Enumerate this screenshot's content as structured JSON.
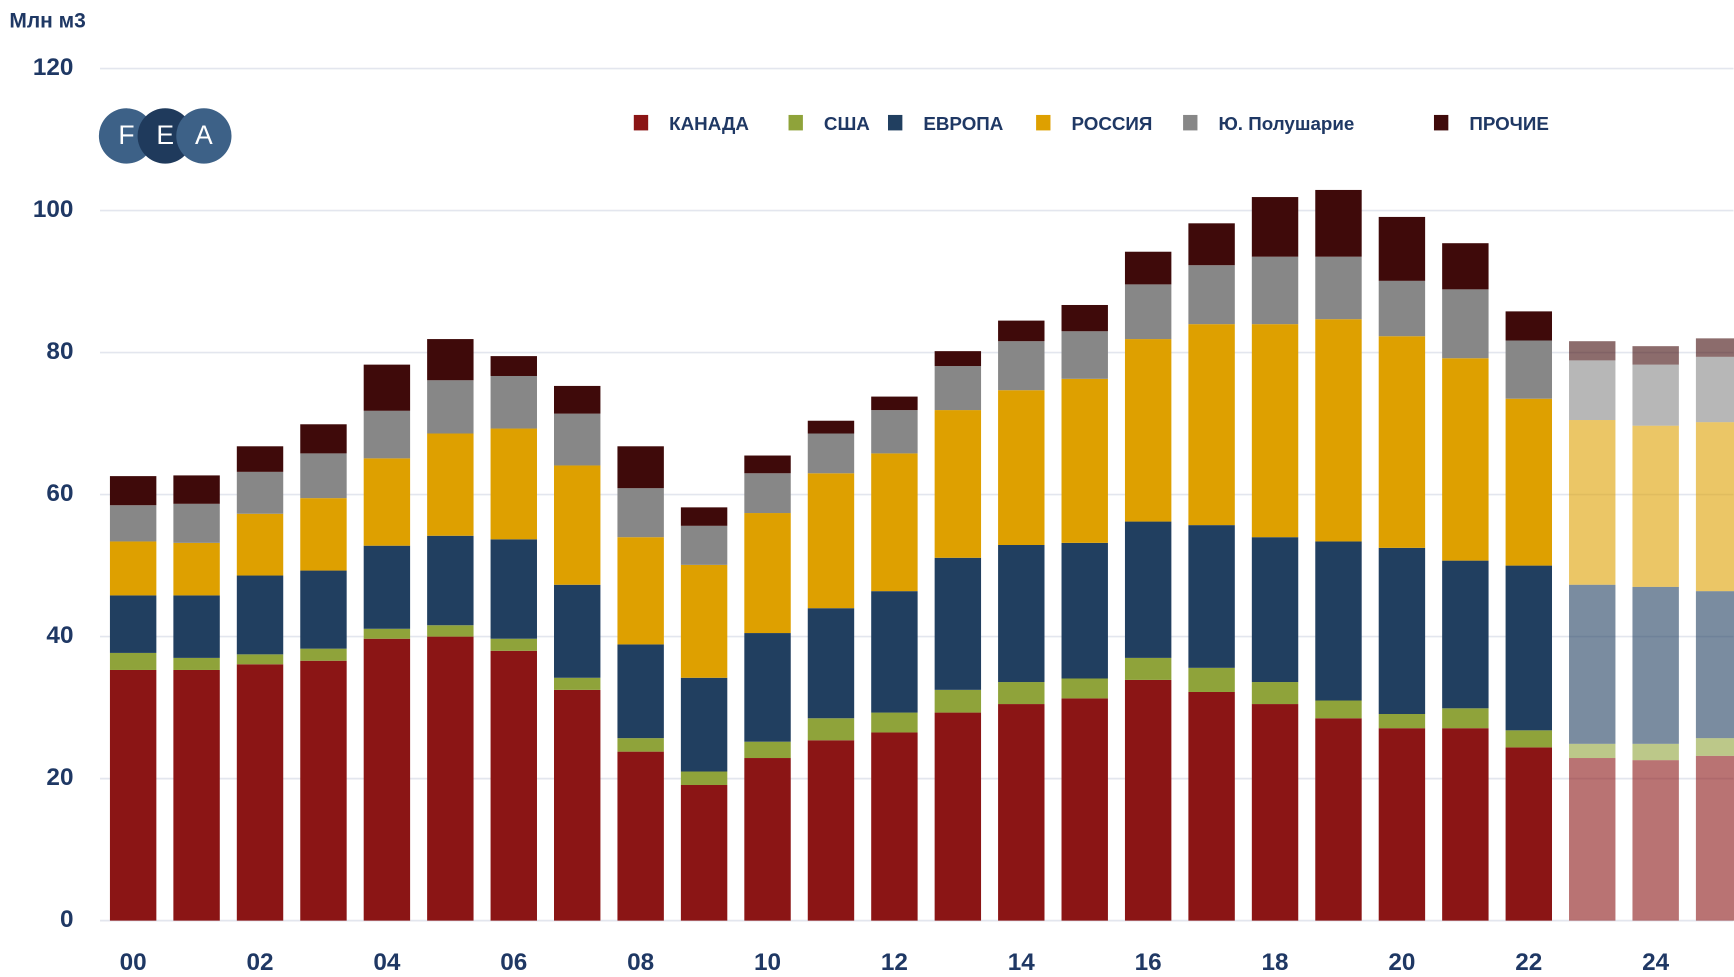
{
  "chart_data": {
    "type": "stacked_bar",
    "y_label": "Млн м3",
    "logo": [
      "F",
      "E",
      "A"
    ],
    "categories": [
      "00",
      null,
      "02",
      null,
      "04",
      null,
      "06",
      null,
      "08",
      null,
      "10",
      null,
      "12",
      null,
      "14",
      null,
      "16",
      null,
      "18",
      null,
      "20",
      null,
      "22",
      null,
      "24",
      null
    ],
    "ylim": [
      0,
      120
    ],
    "yticks": [
      0,
      20,
      40,
      60,
      80,
      100,
      120
    ],
    "grid": true,
    "forecast_from": 23,
    "forecast_opacity": 0.6,
    "series": [
      {
        "name": "КАНАДА",
        "color": "#8b1515",
        "values": [
          35.3,
          35.3,
          36.1,
          36.6,
          39.7,
          40.0,
          38.0,
          32.5,
          23.8,
          19.1,
          22.9,
          25.4,
          26.5,
          29.3,
          30.5,
          31.3,
          33.9,
          32.2,
          30.5,
          28.5,
          27.1,
          27.1,
          24.4,
          22.9,
          22.6,
          23.2
        ]
      },
      {
        "name": "США",
        "color": "#8fa33a",
        "values": [
          2.4,
          1.7,
          1.4,
          1.7,
          1.4,
          1.6,
          1.7,
          1.7,
          1.9,
          1.9,
          2.3,
          3.1,
          2.8,
          3.2,
          3.1,
          2.8,
          3.1,
          3.4,
          3.1,
          2.5,
          2.0,
          2.8,
          2.4,
          2.0,
          2.3,
          2.5
        ]
      },
      {
        "name": "ЕВРОПА",
        "color": "#213f60",
        "values": [
          8.1,
          8.8,
          11.1,
          11.0,
          11.7,
          12.6,
          14.0,
          13.1,
          13.2,
          13.2,
          15.3,
          15.5,
          17.1,
          18.6,
          19.3,
          19.1,
          19.2,
          20.1,
          20.4,
          22.4,
          23.4,
          20.8,
          23.2,
          22.4,
          22.1,
          20.7
        ]
      },
      {
        "name": "РОССИЯ",
        "color": "#dea000",
        "values": [
          7.6,
          7.4,
          8.7,
          10.2,
          12.3,
          14.4,
          15.6,
          16.8,
          15.1,
          15.9,
          16.9,
          19.0,
          19.4,
          20.8,
          21.8,
          23.1,
          25.7,
          28.3,
          30.0,
          31.3,
          29.8,
          28.5,
          23.5,
          23.2,
          22.7,
          23.8
        ]
      },
      {
        "name": "Ю. Полушарие",
        "color": "#878787",
        "values": [
          5.1,
          5.5,
          5.9,
          6.3,
          6.7,
          7.5,
          7.4,
          7.3,
          6.9,
          5.5,
          5.6,
          5.6,
          6.1,
          6.2,
          6.9,
          6.7,
          7.7,
          8.3,
          9.5,
          8.8,
          7.8,
          9.7,
          8.2,
          8.4,
          8.6,
          9.2
        ]
      },
      {
        "name": "ПРОЧИЕ",
        "color": "#3f0a0a",
        "values": [
          4.1,
          4.0,
          3.6,
          4.1,
          6.5,
          5.8,
          2.8,
          3.9,
          5.9,
          2.6,
          2.5,
          1.8,
          1.9,
          2.1,
          2.9,
          3.7,
          4.6,
          5.9,
          8.4,
          9.4,
          9.0,
          6.5,
          4.1,
          2.7,
          2.6,
          2.6
        ]
      }
    ]
  }
}
